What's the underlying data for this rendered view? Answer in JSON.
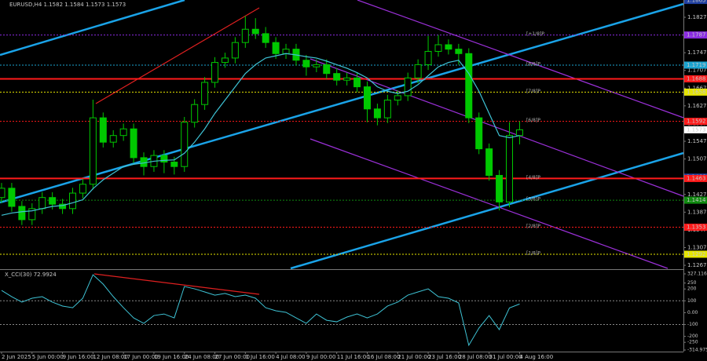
{
  "chart_data": [
    {
      "type": "candlestick",
      "title": "EURUSD,H4  1.1582 1.1584 1.1573 1.1573",
      "categories": [
        "2 Jun 2025",
        null,
        null,
        "5 Jun 00:00",
        null,
        null,
        "9 Jun 16:00",
        null,
        null,
        "12 Jun 08:00",
        null,
        null,
        "17 Jun 00:00",
        null,
        null,
        "19 Jun 16:00",
        null,
        null,
        "24 Jun 08:00",
        null,
        null,
        "27 Jun 00:00",
        null,
        null,
        "1 Jul 16:00",
        null,
        null,
        "4 Jul 08:00",
        null,
        null,
        "9 Jul 00:00",
        null,
        null,
        "11 Jul 16:00",
        null,
        null,
        "16 Jul 08:00",
        null,
        null,
        "21 Jul 00:00",
        null,
        null,
        "23 Jul 16:00",
        null,
        null,
        "28 Jul 08:00",
        null,
        null,
        "31 Jul 00:00",
        null,
        null,
        "4 Aug 16:00"
      ],
      "open": [
        1.142,
        1.1441,
        1.14,
        1.137,
        1.1395,
        1.142,
        1.1405,
        1.1395,
        1.143,
        1.145,
        1.16,
        1.1545,
        1.156,
        1.1575,
        1.151,
        1.149,
        1.1515,
        1.15,
        1.149,
        1.159,
        1.163,
        1.168,
        1.1725,
        1.1735,
        1.177,
        1.18,
        1.179,
        1.177,
        1.1745,
        1.1755,
        1.173,
        1.1715,
        1.172,
        1.17,
        1.1685,
        1.169,
        1.167,
        1.162,
        1.16,
        1.164,
        1.165,
        1.169,
        1.172,
        1.175,
        1.1765,
        1.1755,
        1.1745,
        1.16,
        1.153,
        1.147,
        1.141,
        1.156
      ],
      "high": [
        1.1453,
        1.1453,
        1.1412,
        1.1407,
        1.1432,
        1.1432,
        1.1417,
        1.1442,
        1.1462,
        1.1641,
        1.1612,
        1.1572,
        1.1587,
        1.1587,
        1.1522,
        1.1527,
        1.1527,
        1.1512,
        1.1602,
        1.1642,
        1.1692,
        1.1737,
        1.1747,
        1.1782,
        1.183,
        1.1825,
        1.1805,
        1.1782,
        1.1767,
        1.1767,
        1.1742,
        1.1732,
        1.1732,
        1.1712,
        1.1702,
        1.1702,
        1.1682,
        1.1632,
        1.1652,
        1.1662,
        1.1702,
        1.1732,
        1.1785,
        1.1787,
        1.1777,
        1.1767,
        1.1757,
        1.1612,
        1.1542,
        1.1482,
        1.159,
        1.1592
      ],
      "low": [
        1.1408,
        1.1388,
        1.1358,
        1.1358,
        1.1383,
        1.1393,
        1.1383,
        1.1383,
        1.1418,
        1.1438,
        1.1533,
        1.1533,
        1.1548,
        1.1498,
        1.147,
        1.1478,
        1.1475,
        1.1472,
        1.1478,
        1.1578,
        1.1618,
        1.1668,
        1.1713,
        1.1723,
        1.1758,
        1.1778,
        1.1758,
        1.1733,
        1.1733,
        1.1718,
        1.1695,
        1.1703,
        1.1688,
        1.1673,
        1.1673,
        1.1658,
        1.159,
        1.1583,
        1.1588,
        1.1628,
        1.1638,
        1.1678,
        1.1708,
        1.1738,
        1.1743,
        1.172,
        1.1588,
        1.1518,
        1.1458,
        1.1391,
        1.1398,
        1.154
      ],
      "close": [
        1.1441,
        1.14,
        1.137,
        1.1395,
        1.142,
        1.1405,
        1.1395,
        1.143,
        1.145,
        1.16,
        1.1545,
        1.156,
        1.1575,
        1.151,
        1.149,
        1.1515,
        1.15,
        1.149,
        1.159,
        1.163,
        1.168,
        1.1725,
        1.1735,
        1.177,
        1.18,
        1.179,
        1.177,
        1.1745,
        1.1755,
        1.173,
        1.1715,
        1.172,
        1.17,
        1.1685,
        1.169,
        1.167,
        1.162,
        1.16,
        1.164,
        1.165,
        1.169,
        1.172,
        1.175,
        1.1765,
        1.1755,
        1.1745,
        1.16,
        1.153,
        1.147,
        1.141,
        1.156,
        1.1573
      ],
      "up_color": "#00c800",
      "down_color": "#00c800",
      "ma": {
        "color": "#3ec3d5",
        "values": [
          1.138,
          1.1385,
          1.1388,
          1.139,
          1.1395,
          1.14,
          1.1402,
          1.1408,
          1.1415,
          1.144,
          1.146,
          1.1475,
          1.149,
          1.1495,
          1.1498,
          1.1502,
          1.1504,
          1.1505,
          1.152,
          1.1545,
          1.1575,
          1.161,
          1.164,
          1.167,
          1.17,
          1.172,
          1.1735,
          1.174,
          1.1745,
          1.1742,
          1.1738,
          1.1735,
          1.1728,
          1.172,
          1.1712,
          1.1702,
          1.169,
          1.167,
          1.166,
          1.1655,
          1.166,
          1.1675,
          1.1695,
          1.1715,
          1.1725,
          1.173,
          1.17,
          1.166,
          1.161,
          1.156,
          1.1555,
          1.156
        ]
      },
      "ylim": [
        1.126,
        1.1866
      ],
      "yticks": [
        1.1827,
        1.1787,
        1.1747,
        1.1707,
        1.1667,
        1.1627,
        1.1587,
        1.1547,
        1.1507,
        1.1467,
        1.1427,
        1.1387,
        1.1347,
        1.1307,
        1.1267
      ],
      "levels": [
        {
          "value": 1.1865,
          "color": "#1f3fa0",
          "style": "none"
        },
        {
          "value": 1.1787,
          "color": "#8a2be2",
          "style": "dotted",
          "tag": "[+1/8]P"
        },
        {
          "value": 1.1719,
          "color": "#1aa3d0",
          "style": "dotted",
          "tag": "[8/8]P"
        },
        {
          "value": 1.1688,
          "color": "#ff1a1a",
          "style": "solid"
        },
        {
          "value": 1.1658,
          "color": "#e6e600",
          "style": "dotted",
          "tag": "[7/8]P"
        },
        {
          "value": 1.1592,
          "color": "#ff1a1a",
          "style": "dotted",
          "tag": "[6/8]P"
        },
        {
          "value": 1.1573,
          "color": "#ffffff",
          "style": "none"
        },
        {
          "value": 1.1466,
          "color": "#1f3fa0",
          "style": "none"
        },
        {
          "value": 1.1463,
          "color": "#ff1a1a",
          "style": "solid",
          "tag": "[4/8]P"
        },
        {
          "value": 1.1414,
          "color": "#0f8a0f",
          "style": "dotted",
          "tag": "[3/8]P"
        },
        {
          "value": 1.1353,
          "color": "#ff1a1a",
          "style": "dotted",
          "tag": "[2/8]P"
        },
        {
          "value": 1.1292,
          "color": "#e6e600",
          "style": "dotted",
          "tag": "[1/8]P"
        }
      ]
    },
    {
      "type": "line",
      "title": "X_CCI(30) 72.9924",
      "series": [
        {
          "color": "#3ec3d5",
          "values": [
            188,
            135,
            89,
            122,
            135,
            89,
            56,
            42,
            122,
            320,
            241,
            135,
            42,
            -44,
            -90,
            -24,
            -11,
            -44,
            221,
            201,
            175,
            148,
            162,
            135,
            148,
            122,
            42,
            16,
            3,
            -44,
            -90,
            -11,
            -64,
            -77,
            -37,
            -11,
            -44,
            -11,
            56,
            89,
            148,
            175,
            201,
            135,
            122,
            82,
            -275,
            -130,
            -24,
            -143,
            40,
            72.9924
          ]
        }
      ],
      "ylim": [
        -314.975,
        327.116
      ],
      "yticks": [
        327.116,
        250,
        200,
        100,
        {
          "value": 0,
          "label": "0.00"
        },
        -100,
        -200,
        -250,
        -314.975
      ],
      "levels": [
        100,
        -100
      ]
    }
  ]
}
